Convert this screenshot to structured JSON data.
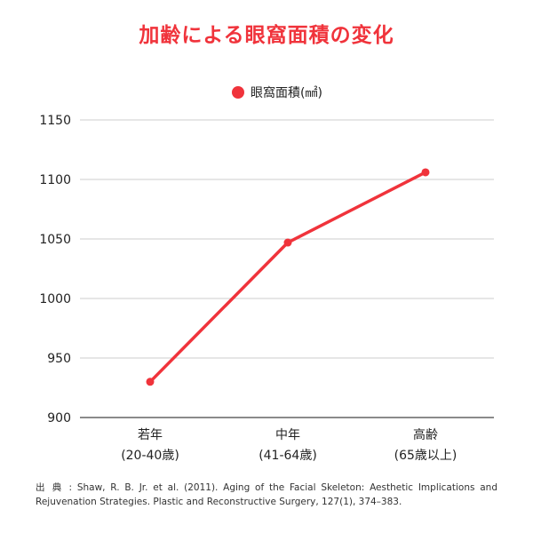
{
  "chart_data": {
    "type": "line",
    "title": "加齢による眼窩面積の変化",
    "categories": [
      "若年",
      "中年",
      "高齢"
    ],
    "category_sublabels": [
      "(20-40歳)",
      "(41-64歳)",
      "(65歳以上)"
    ],
    "series": [
      {
        "name": "眼窩面積(㎟)",
        "values": [
          930,
          1047,
          1106
        ],
        "color": "#f0333b"
      }
    ],
    "ylim": [
      900,
      1150
    ],
    "yticks": [
      900,
      950,
      1000,
      1050,
      1100,
      1150
    ],
    "grid": true,
    "legend": "top-center",
    "xlabel": "",
    "ylabel": ""
  },
  "source": "出 典 : Shaw, R. B. Jr. et al. (2011). Aging of the Facial Skeleton: Aesthetic Implications and Rejuvenation Strategies. Plastic and Reconstructive Surgery, 127(1), 374–383."
}
